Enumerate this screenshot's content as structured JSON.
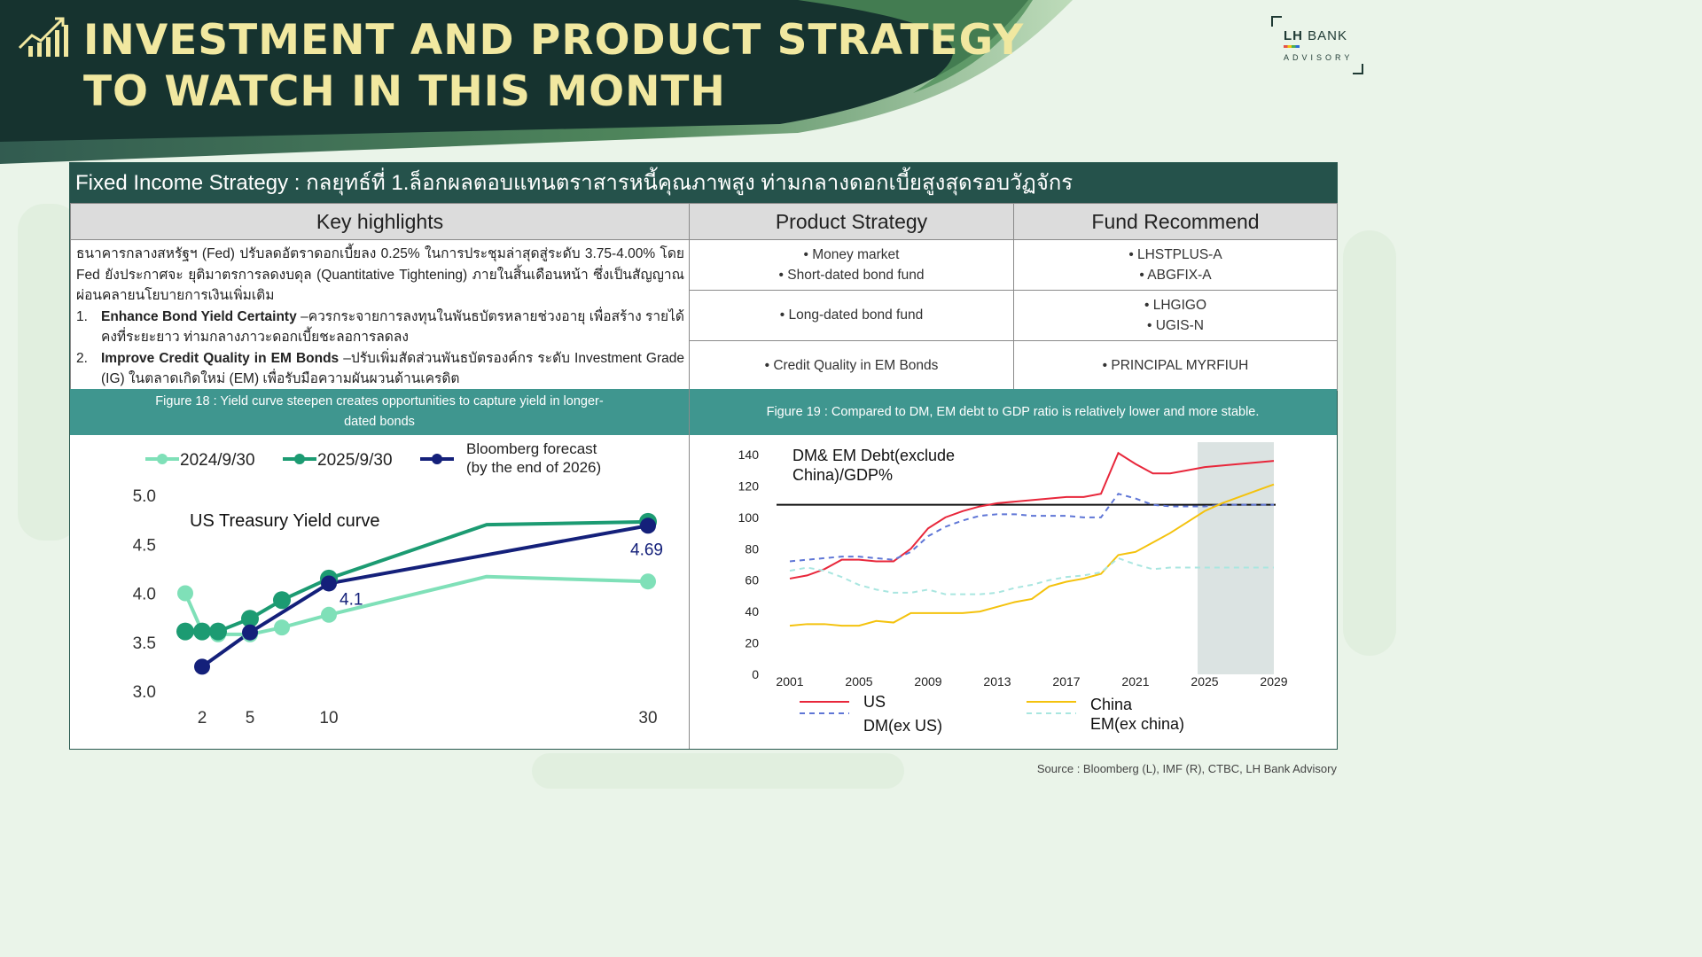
{
  "header": {
    "title_line1": "INVESTMENT AND PRODUCT STRATEGY",
    "title_line2": "TO WATCH IN THIS MONTH",
    "logo_lh": "LH",
    "logo_bank": "BANK",
    "logo_advisory": "ADVISORY",
    "colors": {
      "banner_dark": "#16332f",
      "title_yellow": "#f1e8a0",
      "teal": "#3f968f",
      "panel_head": "#25524b"
    }
  },
  "panel": {
    "heading": "Fixed Income Strategy : กลยุทธ์ที่ 1.ล็อกผลตอบแทนตราสารหนี้คุณภาพสูง ท่ามกลางดอกเบี้ยสูงสุดรอบวัฏจักร",
    "columns": [
      "Key highlights",
      "Product Strategy",
      "Fund Recommend"
    ],
    "highlights": {
      "intro": "ธนาคารกลางสหรัฐฯ (Fed) ปรับลดอัตราดอกเบี้ยลง 0.25% ในการประชุมล่าสุดสู่ระดับ 3.75-4.00% โดย Fed ยังประกาศจะ ยุติมาตรการลดงบดุล (Quantitative Tightening) ภายในสิ้นเดือนหน้า ซึ่งเป็นสัญญาณผ่อนคลายนโยบายการเงินเพิ่มเติม",
      "items": [
        {
          "num": "1.",
          "bold": "Enhance Bond Yield Certainty",
          "text": " –ควรกระจายการลงทุนในพันธบัตรหลายช่วงอายุ เพื่อสร้าง รายได้คงที่ระยะยาว ท่ามกลางภาวะดอกเบี้ยชะลอการลดลง"
        },
        {
          "num": "2.",
          "bold": "Improve Credit Quality in EM Bonds",
          "text": " –ปรับเพิ่มสัดส่วนพันธบัตรองค์กร ระดับ Investment Grade (IG) ในตลาดเกิดใหม่ (EM) เพื่อรับมือความผันผวนด้านเครดิต"
        }
      ]
    },
    "rows": [
      {
        "strategy": [
          "Money market",
          "Short-dated bond fund"
        ],
        "funds": [
          "LHSTPLUS-A",
          "ABGFIX-A"
        ]
      },
      {
        "strategy": [
          "Long-dated bond fund"
        ],
        "funds": [
          "LHGIGO",
          "UGIS-N"
        ]
      },
      {
        "strategy": [
          "Credit Quality in EM Bonds"
        ],
        "funds": [
          "PRINCIPAL MYRFIUH"
        ]
      }
    ],
    "figure18_caption": "Figure 18 : Yield curve steepen creates opportunities to capture yield in longer-dated bonds",
    "figure19_caption": "Figure 19 : Compared to DM, EM debt to GDP ratio is relatively lower and more stable."
  },
  "source": "Source : Bloomberg (L), IMF (R),  CTBC, LH Bank Advisory",
  "chart_data": [
    {
      "type": "line",
      "title": "US Treasury Yield curve",
      "ylim": [
        3.0,
        5.0
      ],
      "yticks": [
        "5.0",
        "4.5",
        "4.0",
        "3.5",
        "3.0"
      ],
      "xticks": [
        "2",
        "5",
        "10",
        "30"
      ],
      "series": [
        {
          "name": "2024/9/30",
          "color": "#7fe0b8",
          "points": [
            [
              1,
              4.0
            ],
            [
              2,
              3.61
            ],
            [
              3,
              3.58
            ],
            [
              5,
              3.58
            ],
            [
              7,
              3.65
            ],
            [
              10,
              3.78
            ],
            [
              20,
              4.17
            ],
            [
              30,
              4.12
            ]
          ]
        },
        {
          "name": "2025/9/30",
          "color": "#1c9b72",
          "points": [
            [
              1,
              3.61
            ],
            [
              2,
              3.61
            ],
            [
              3,
              3.61
            ],
            [
              5,
              3.74
            ],
            [
              7,
              3.93
            ],
            [
              10,
              4.15
            ],
            [
              20,
              4.7
            ],
            [
              30,
              4.73
            ]
          ]
        },
        {
          "name": "Bloomberg forecast\n(by the end of 2026)",
          "color": "#14207a",
          "points": [
            [
              2,
              3.25
            ],
            [
              5,
              3.6
            ],
            [
              10,
              4.1
            ],
            [
              30,
              4.69
            ]
          ]
        }
      ],
      "annotations": [
        "4.1",
        "4.69"
      ]
    },
    {
      "type": "line",
      "title": "DM& EM Debt(exclude\nChina)/GDP%",
      "ylim": [
        0,
        140
      ],
      "yticks": [
        "140",
        "120",
        "100",
        "80",
        "60",
        "40",
        "20",
        "0"
      ],
      "xticks": [
        "2001",
        "2005",
        "2009",
        "2013",
        "2017",
        "2021",
        "2025",
        "2029"
      ],
      "reference_line": 108,
      "shaded_from": 2025,
      "series": [
        {
          "name": "US",
          "color": "#e8273b",
          "style": "solid",
          "points": [
            [
              2001,
              61
            ],
            [
              2002,
              63
            ],
            [
              2003,
              67
            ],
            [
              2004,
              73
            ],
            [
              2005,
              73
            ],
            [
              2006,
              72
            ],
            [
              2007,
              72
            ],
            [
              2008,
              80
            ],
            [
              2009,
              93
            ],
            [
              2010,
              100
            ],
            [
              2011,
              104
            ],
            [
              2012,
              107
            ],
            [
              2013,
              109
            ],
            [
              2014,
              110
            ],
            [
              2015,
              111
            ],
            [
              2016,
              112
            ],
            [
              2017,
              113
            ],
            [
              2018,
              113
            ],
            [
              2019,
              115
            ],
            [
              2020,
              141
            ],
            [
              2021,
              134
            ],
            [
              2022,
              128
            ],
            [
              2023,
              128
            ],
            [
              2024,
              130
            ],
            [
              2025,
              132
            ],
            [
              2026,
              133
            ],
            [
              2027,
              134
            ],
            [
              2028,
              135
            ],
            [
              2029,
              136
            ]
          ]
        },
        {
          "name": "DM(ex US)",
          "color": "#5f76d6",
          "style": "dashed",
          "points": [
            [
              2001,
              72
            ],
            [
              2002,
              73
            ],
            [
              2003,
              74
            ],
            [
              2004,
              75
            ],
            [
              2005,
              75
            ],
            [
              2006,
              74
            ],
            [
              2007,
              73
            ],
            [
              2008,
              78
            ],
            [
              2009,
              88
            ],
            [
              2010,
              94
            ],
            [
              2011,
              98
            ],
            [
              2012,
              101
            ],
            [
              2013,
              102
            ],
            [
              2014,
              102
            ],
            [
              2015,
              101
            ],
            [
              2016,
              101
            ],
            [
              2017,
              101
            ],
            [
              2018,
              100
            ],
            [
              2019,
              100
            ],
            [
              2020,
              115
            ],
            [
              2021,
              112
            ],
            [
              2022,
              108
            ],
            [
              2023,
              107
            ],
            [
              2024,
              107
            ],
            [
              2025,
              107
            ],
            [
              2026,
              108
            ],
            [
              2027,
              108
            ],
            [
              2028,
              108
            ],
            [
              2029,
              108
            ]
          ]
        },
        {
          "name": "China",
          "color": "#f4c20d",
          "style": "solid",
          "points": [
            [
              2001,
              31
            ],
            [
              2002,
              32
            ],
            [
              2003,
              32
            ],
            [
              2004,
              31
            ],
            [
              2005,
              31
            ],
            [
              2006,
              34
            ],
            [
              2007,
              33
            ],
            [
              2008,
              39
            ],
            [
              2009,
              39
            ],
            [
              2010,
              39
            ],
            [
              2011,
              39
            ],
            [
              2012,
              40
            ],
            [
              2013,
              43
            ],
            [
              2014,
              46
            ],
            [
              2015,
              48
            ],
            [
              2016,
              56
            ],
            [
              2017,
              59
            ],
            [
              2018,
              61
            ],
            [
              2019,
              64
            ],
            [
              2020,
              76
            ],
            [
              2021,
              78
            ],
            [
              2022,
              84
            ],
            [
              2023,
              90
            ],
            [
              2024,
              97
            ],
            [
              2025,
              104
            ],
            [
              2026,
              109
            ],
            [
              2027,
              113
            ],
            [
              2028,
              117
            ],
            [
              2029,
              121
            ]
          ]
        },
        {
          "name": "EM(ex china)",
          "color": "#a9e6e0",
          "style": "dashed",
          "points": [
            [
              2001,
              66
            ],
            [
              2002,
              68
            ],
            [
              2003,
              66
            ],
            [
              2004,
              62
            ],
            [
              2005,
              57
            ],
            [
              2006,
              54
            ],
            [
              2007,
              52
            ],
            [
              2008,
              52
            ],
            [
              2009,
              54
            ],
            [
              2010,
              51
            ],
            [
              2011,
              51
            ],
            [
              2012,
              51
            ],
            [
              2013,
              52
            ],
            [
              2014,
              55
            ],
            [
              2015,
              57
            ],
            [
              2016,
              60
            ],
            [
              2017,
              62
            ],
            [
              2018,
              63
            ],
            [
              2019,
              65
            ],
            [
              2020,
              74
            ],
            [
              2021,
              70
            ],
            [
              2022,
              67
            ],
            [
              2023,
              68
            ],
            [
              2024,
              68
            ],
            [
              2025,
              68
            ],
            [
              2026,
              68
            ],
            [
              2027,
              68
            ],
            [
              2028,
              68
            ],
            [
              2029,
              68
            ]
          ]
        }
      ]
    }
  ]
}
